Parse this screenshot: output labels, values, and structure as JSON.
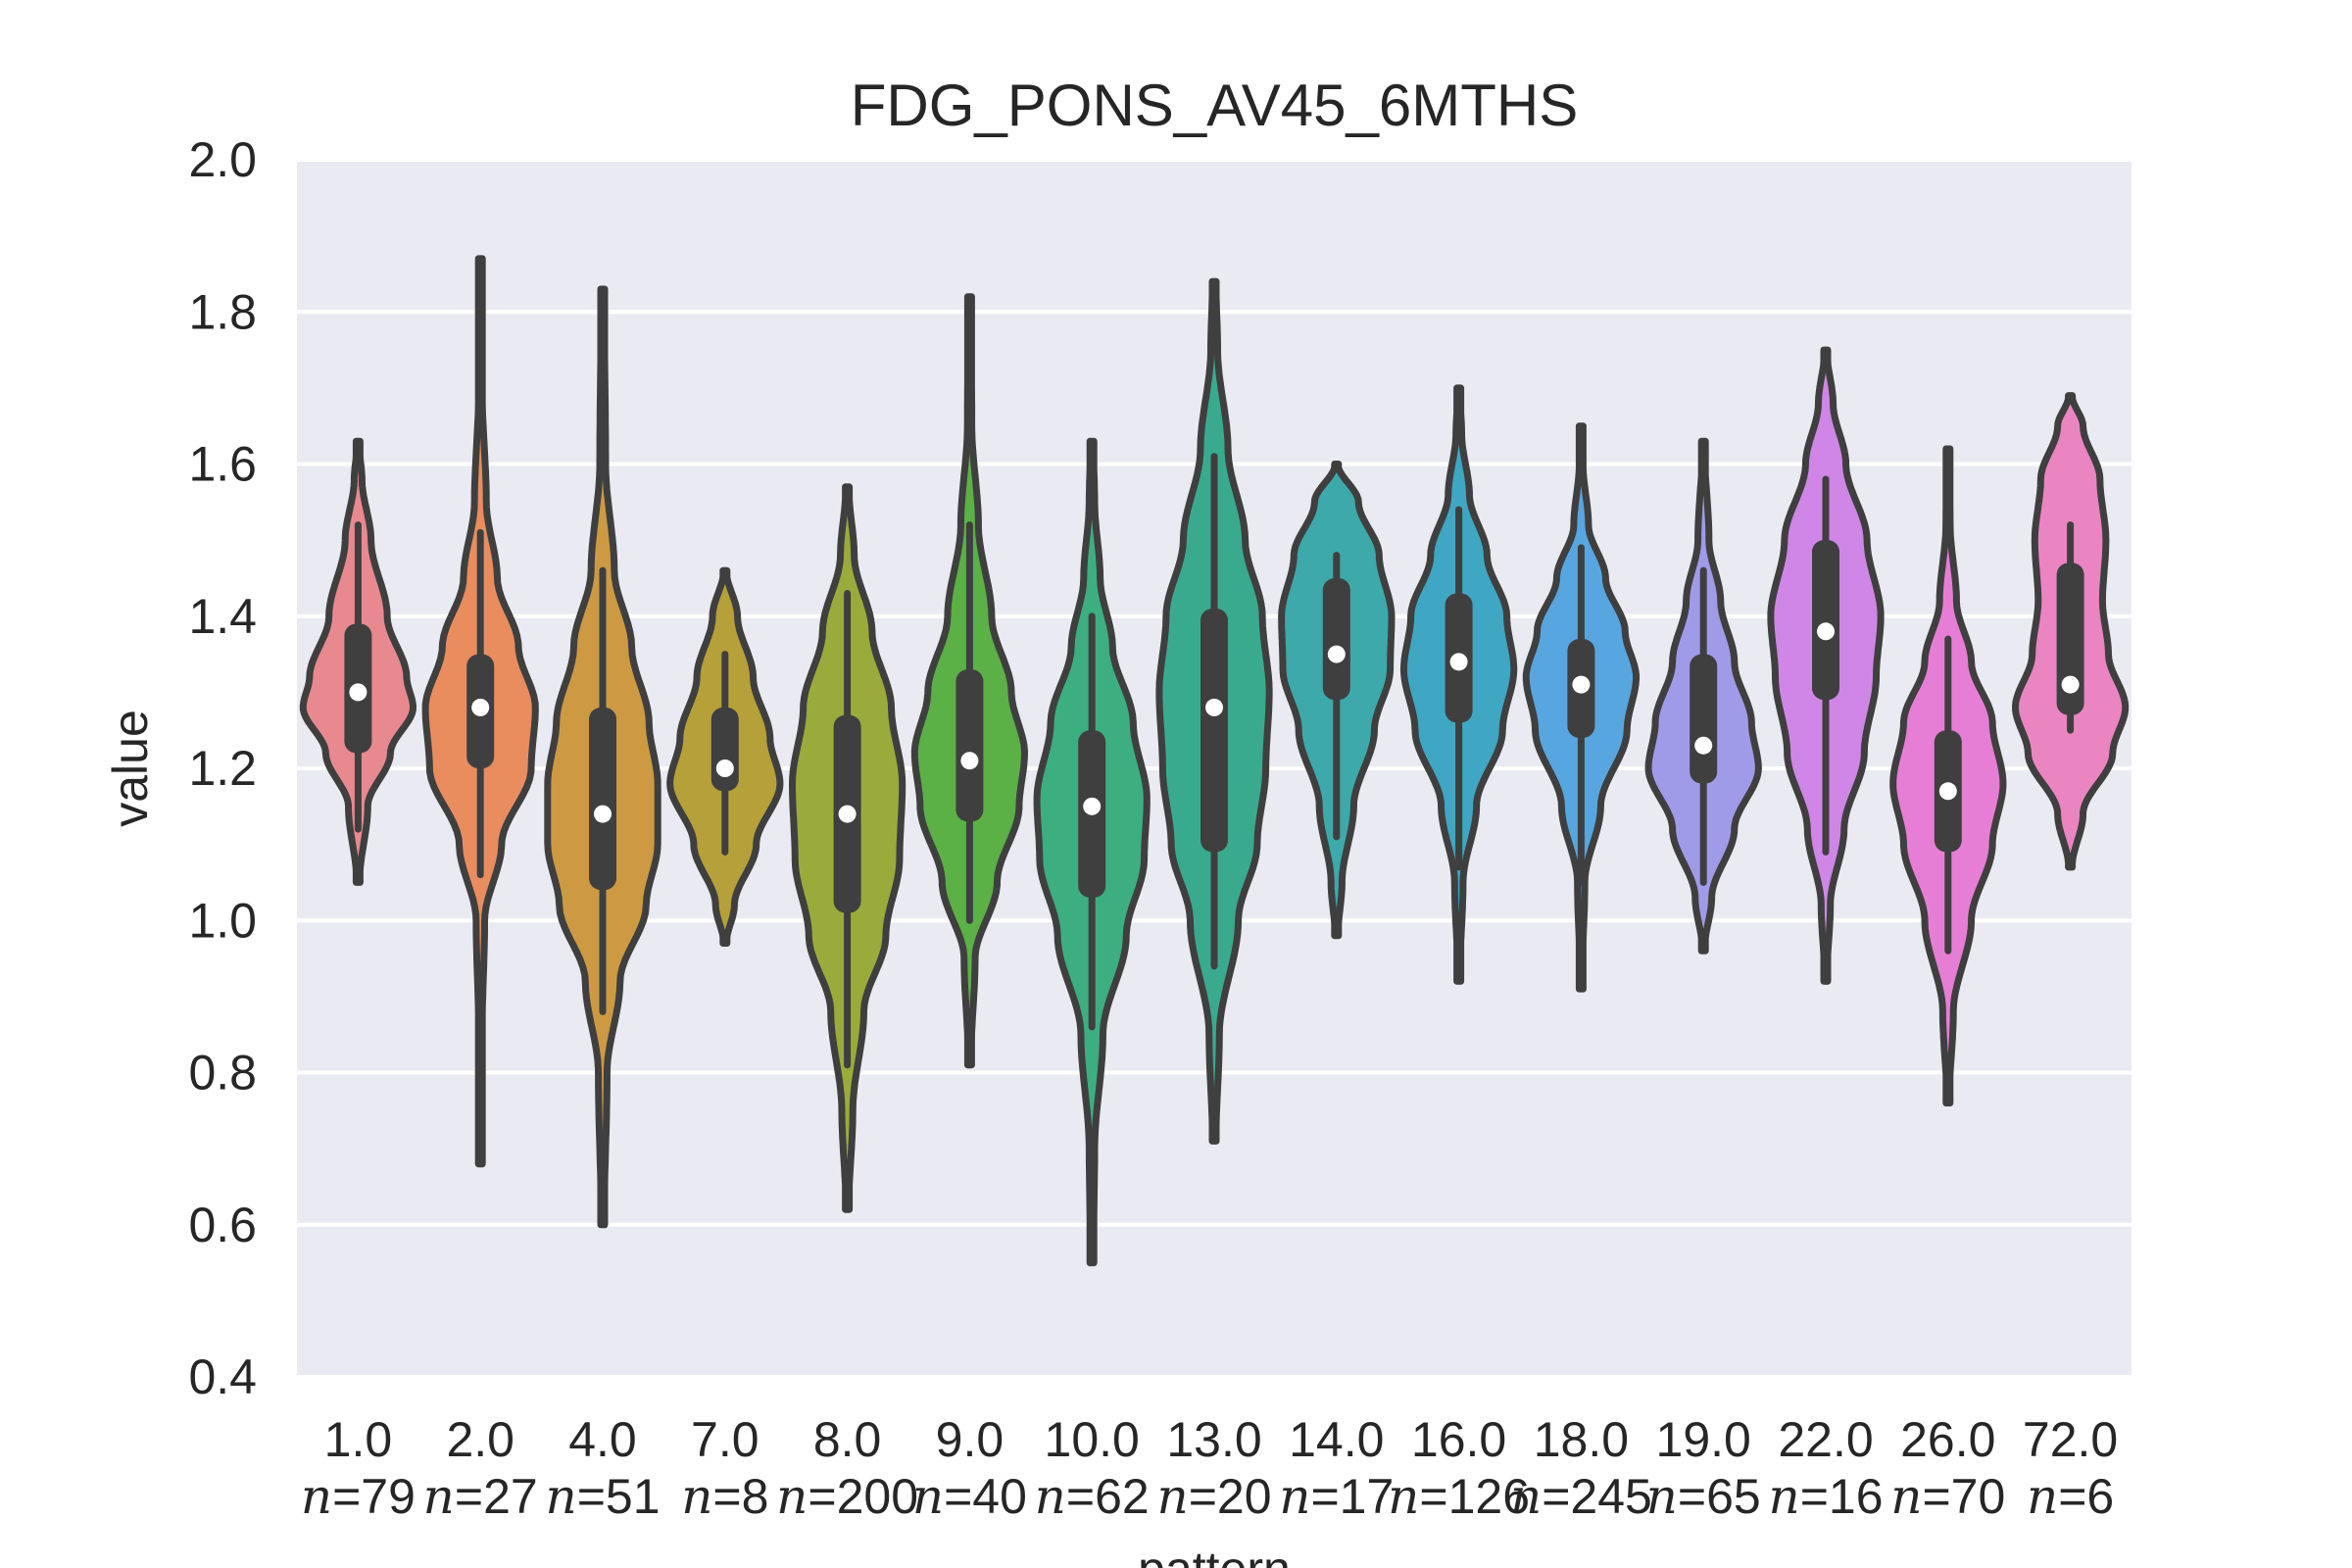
{
  "chart_data": {
    "type": "violin",
    "title": "FDG_PONS_AV45_6MTHS",
    "xlabel": "pattern",
    "ylabel": "value",
    "ylim": [
      0.4,
      2.0
    ],
    "yticks": [
      "0.4",
      "0.6",
      "0.8",
      "1.0",
      "1.2",
      "1.4",
      "1.6",
      "1.8",
      "2.0"
    ],
    "grid": true,
    "series": [
      {
        "category": "1.0",
        "n_prefix": "n",
        "n_label": "=79",
        "color": "#e8898f",
        "min": 1.05,
        "max": 1.63,
        "q1": 1.22,
        "median": 1.3,
        "q3": 1.39,
        "whisk_lo": 1.12,
        "whisk_hi": 1.52,
        "density": [
          [
            1.05,
            0.02
          ],
          [
            1.15,
            0.15
          ],
          [
            1.22,
            0.5
          ],
          [
            1.28,
            0.85
          ],
          [
            1.32,
            0.75
          ],
          [
            1.4,
            0.45
          ],
          [
            1.5,
            0.2
          ],
          [
            1.58,
            0.06
          ],
          [
            1.63,
            0.01
          ]
        ]
      },
      {
        "category": "2.0",
        "n_prefix": "n",
        "n_label": "=27",
        "color": "#e98d5f",
        "min": 0.68,
        "max": 1.87,
        "q1": 1.2,
        "median": 1.28,
        "q3": 1.35,
        "whisk_lo": 1.06,
        "whisk_hi": 1.51,
        "density": [
          [
            0.68,
            0.01
          ],
          [
            0.85,
            0.02
          ],
          [
            1.0,
            0.05
          ],
          [
            1.1,
            0.25
          ],
          [
            1.2,
            0.6
          ],
          [
            1.28,
            0.65
          ],
          [
            1.36,
            0.45
          ],
          [
            1.45,
            0.2
          ],
          [
            1.55,
            0.07
          ],
          [
            1.7,
            0.02
          ],
          [
            1.87,
            0.01
          ]
        ]
      },
      {
        "category": "4.0",
        "n_prefix": "n",
        "n_label": "=51",
        "color": "#cd9a43",
        "min": 0.6,
        "max": 1.83,
        "q1": 1.04,
        "median": 1.14,
        "q3": 1.28,
        "whisk_lo": 0.88,
        "whisk_hi": 1.46,
        "density": [
          [
            0.6,
            0.01
          ],
          [
            0.8,
            0.03
          ],
          [
            0.92,
            0.12
          ],
          [
            1.02,
            0.3
          ],
          [
            1.1,
            0.38
          ],
          [
            1.18,
            0.38
          ],
          [
            1.26,
            0.32
          ],
          [
            1.36,
            0.2
          ],
          [
            1.46,
            0.08
          ],
          [
            1.6,
            0.02
          ],
          [
            1.83,
            0.01
          ]
        ]
      },
      {
        "category": "7.0",
        "n_prefix": "n",
        "n_label": "=8",
        "color": "#b5a03a",
        "min": 0.97,
        "max": 1.46,
        "q1": 1.17,
        "median": 1.2,
        "q3": 1.28,
        "whisk_lo": 1.09,
        "whisk_hi": 1.35,
        "density": [
          [
            0.97,
            0.02
          ],
          [
            1.02,
            0.15
          ],
          [
            1.1,
            0.5
          ],
          [
            1.18,
            0.88
          ],
          [
            1.24,
            0.72
          ],
          [
            1.32,
            0.45
          ],
          [
            1.4,
            0.2
          ],
          [
            1.46,
            0.02
          ]
        ]
      },
      {
        "category": "8.0",
        "n_prefix": "n",
        "n_label": "=200",
        "color": "#9aab3b",
        "min": 0.62,
        "max": 1.57,
        "q1": 1.01,
        "median": 1.14,
        "q3": 1.27,
        "whisk_lo": 0.81,
        "whisk_hi": 1.43,
        "density": [
          [
            0.62,
            0.01
          ],
          [
            0.75,
            0.04
          ],
          [
            0.88,
            0.12
          ],
          [
            0.98,
            0.28
          ],
          [
            1.08,
            0.38
          ],
          [
            1.18,
            0.4
          ],
          [
            1.28,
            0.32
          ],
          [
            1.38,
            0.18
          ],
          [
            1.48,
            0.05
          ],
          [
            1.57,
            0.01
          ]
        ]
      },
      {
        "category": "9.0",
        "n_prefix": "n",
        "n_label": "=40",
        "color": "#5bb046",
        "min": 0.81,
        "max": 1.82,
        "q1": 1.13,
        "median": 1.21,
        "q3": 1.33,
        "whisk_lo": 1.0,
        "whisk_hi": 1.52,
        "density": [
          [
            0.81,
            0.01
          ],
          [
            0.95,
            0.05
          ],
          [
            1.05,
            0.25
          ],
          [
            1.15,
            0.45
          ],
          [
            1.22,
            0.5
          ],
          [
            1.3,
            0.38
          ],
          [
            1.4,
            0.2
          ],
          [
            1.52,
            0.08
          ],
          [
            1.65,
            0.02
          ],
          [
            1.82,
            0.01
          ]
        ]
      },
      {
        "category": "10.0",
        "n_prefix": "n",
        "n_label": "=62",
        "color": "#3dae80",
        "min": 0.55,
        "max": 1.63,
        "q1": 1.03,
        "median": 1.15,
        "q3": 1.25,
        "whisk_lo": 0.86,
        "whisk_hi": 1.4,
        "density": [
          [
            0.55,
            0.01
          ],
          [
            0.7,
            0.02
          ],
          [
            0.85,
            0.08
          ],
          [
            0.98,
            0.25
          ],
          [
            1.08,
            0.38
          ],
          [
            1.16,
            0.4
          ],
          [
            1.26,
            0.3
          ],
          [
            1.36,
            0.15
          ],
          [
            1.45,
            0.06
          ],
          [
            1.55,
            0.02
          ],
          [
            1.63,
            0.01
          ]
        ]
      },
      {
        "category": "13.0",
        "n_prefix": "n",
        "n_label": "=20",
        "color": "#3aaa8f",
        "min": 0.71,
        "max": 1.84,
        "q1": 1.09,
        "median": 1.28,
        "q3": 1.41,
        "whisk_lo": 0.94,
        "whisk_hi": 1.61,
        "density": [
          [
            0.71,
            0.01
          ],
          [
            0.85,
            0.03
          ],
          [
            1.0,
            0.14
          ],
          [
            1.1,
            0.25
          ],
          [
            1.2,
            0.3
          ],
          [
            1.3,
            0.32
          ],
          [
            1.4,
            0.28
          ],
          [
            1.5,
            0.18
          ],
          [
            1.62,
            0.08
          ],
          [
            1.75,
            0.02
          ],
          [
            1.84,
            0.01
          ]
        ]
      },
      {
        "category": "14.0",
        "n_prefix": "n",
        "n_label": "=17",
        "color": "#3da9aa",
        "min": 0.98,
        "max": 1.6,
        "q1": 1.29,
        "median": 1.35,
        "q3": 1.45,
        "whisk_lo": 1.11,
        "whisk_hi": 1.48,
        "density": [
          [
            0.98,
            0.02
          ],
          [
            1.05,
            0.08
          ],
          [
            1.15,
            0.25
          ],
          [
            1.25,
            0.55
          ],
          [
            1.33,
            0.78
          ],
          [
            1.4,
            0.8
          ],
          [
            1.48,
            0.62
          ],
          [
            1.55,
            0.32
          ],
          [
            1.6,
            0.02
          ]
        ]
      },
      {
        "category": "16.0",
        "n_prefix": "n",
        "n_label": "=126",
        "color": "#3fa6c3",
        "min": 0.92,
        "max": 1.7,
        "q1": 1.26,
        "median": 1.34,
        "q3": 1.43,
        "whisk_lo": 1.07,
        "whisk_hi": 1.54,
        "density": [
          [
            0.92,
            0.01
          ],
          [
            1.05,
            0.06
          ],
          [
            1.15,
            0.25
          ],
          [
            1.25,
            0.62
          ],
          [
            1.33,
            0.78
          ],
          [
            1.4,
            0.68
          ],
          [
            1.48,
            0.4
          ],
          [
            1.56,
            0.15
          ],
          [
            1.64,
            0.04
          ],
          [
            1.7,
            0.01
          ]
        ]
      },
      {
        "category": "18.0",
        "n_prefix": "n",
        "n_label": "=245",
        "color": "#58a6e0",
        "min": 0.91,
        "max": 1.65,
        "q1": 1.24,
        "median": 1.31,
        "q3": 1.37,
        "whisk_lo": 1.05,
        "whisk_hi": 1.49,
        "density": [
          [
            0.91,
            0.01
          ],
          [
            1.05,
            0.06
          ],
          [
            1.15,
            0.32
          ],
          [
            1.25,
            0.75
          ],
          [
            1.32,
            0.9
          ],
          [
            1.38,
            0.72
          ],
          [
            1.45,
            0.4
          ],
          [
            1.52,
            0.12
          ],
          [
            1.6,
            0.03
          ],
          [
            1.65,
            0.01
          ]
        ]
      },
      {
        "category": "19.0",
        "n_prefix": "n",
        "n_label": "=65",
        "color": "#a09be8",
        "min": 0.96,
        "max": 1.63,
        "q1": 1.18,
        "median": 1.23,
        "q3": 1.35,
        "whisk_lo": 1.05,
        "whisk_hi": 1.46,
        "density": [
          [
            0.96,
            0.01
          ],
          [
            1.03,
            0.12
          ],
          [
            1.12,
            0.45
          ],
          [
            1.2,
            0.8
          ],
          [
            1.26,
            0.7
          ],
          [
            1.34,
            0.45
          ],
          [
            1.42,
            0.25
          ],
          [
            1.5,
            0.08
          ],
          [
            1.63,
            0.01
          ]
        ]
      },
      {
        "category": "22.0",
        "n_prefix": "n",
        "n_label": "=16",
        "color": "#cf86e6",
        "min": 0.92,
        "max": 1.75,
        "q1": 1.29,
        "median": 1.38,
        "q3": 1.5,
        "whisk_lo": 1.09,
        "whisk_hi": 1.58,
        "density": [
          [
            0.92,
            0.01
          ],
          [
            1.02,
            0.05
          ],
          [
            1.12,
            0.2
          ],
          [
            1.22,
            0.42
          ],
          [
            1.32,
            0.55
          ],
          [
            1.4,
            0.6
          ],
          [
            1.5,
            0.45
          ],
          [
            1.6,
            0.22
          ],
          [
            1.68,
            0.08
          ],
          [
            1.75,
            0.01
          ]
        ]
      },
      {
        "category": "26.0",
        "n_prefix": "n",
        "n_label": "=70",
        "color": "#e77ed6",
        "min": 0.76,
        "max": 1.62,
        "q1": 1.09,
        "median": 1.17,
        "q3": 1.25,
        "whisk_lo": 0.96,
        "whisk_hi": 1.37,
        "density": [
          [
            0.76,
            0.01
          ],
          [
            0.88,
            0.05
          ],
          [
            1.0,
            0.22
          ],
          [
            1.1,
            0.42
          ],
          [
            1.18,
            0.52
          ],
          [
            1.26,
            0.42
          ],
          [
            1.34,
            0.22
          ],
          [
            1.42,
            0.08
          ],
          [
            1.52,
            0.02
          ],
          [
            1.62,
            0.01
          ]
        ]
      },
      {
        "category": "72.0",
        "n_prefix": "n",
        "n_label": "=6",
        "color": "#ea85c2",
        "min": 1.07,
        "max": 1.69,
        "q1": 1.27,
        "median": 1.31,
        "q3": 1.47,
        "whisk_lo": 1.25,
        "whisk_hi": 1.52,
        "density": [
          [
            1.07,
            0.02
          ],
          [
            1.14,
            0.15
          ],
          [
            1.22,
            0.5
          ],
          [
            1.28,
            0.65
          ],
          [
            1.35,
            0.45
          ],
          [
            1.42,
            0.38
          ],
          [
            1.5,
            0.42
          ],
          [
            1.58,
            0.35
          ],
          [
            1.65,
            0.15
          ],
          [
            1.69,
            0.02
          ]
        ]
      }
    ]
  }
}
